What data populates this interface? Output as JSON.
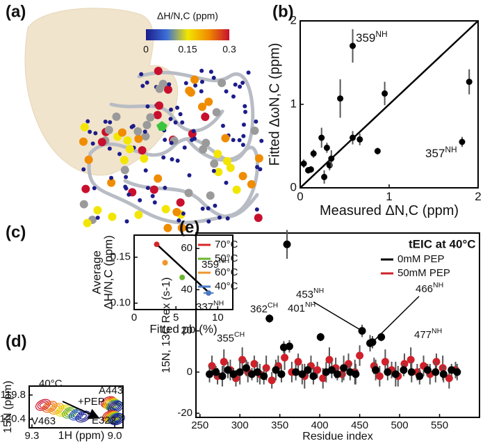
{
  "chart_data": [
    {
      "type": "colorbar",
      "panel_label": "(a)",
      "label": "ΔH/N,C (ppm)",
      "lim": [
        0,
        0.3
      ],
      "ticks": [
        0,
        0.15,
        0.3
      ],
      "colors": [
        "#1c1c8a",
        "#3c6fd8",
        "#f2e600",
        "#f08c00",
        "#c8102e"
      ]
    },
    {
      "type": "scatter",
      "panel_label": "(b)",
      "xlabel": "Measured ΔN,C (ppm)",
      "ylabel": [
        "Fitted ΔωN,C (ppm)"
      ],
      "xlim": [
        0,
        2
      ],
      "ylim": [
        0,
        2
      ],
      "xticks": [
        0,
        1,
        2
      ],
      "yticks": [
        0,
        1,
        2
      ],
      "diagonal": true,
      "series": [
        {
          "color": "#000000",
          "x": [
            0.04,
            0.09,
            0.12,
            0.15,
            0.24,
            0.27,
            0.3,
            0.33,
            0.35,
            0.45,
            0.59,
            0.59,
            0.67,
            0.87,
            0.95,
            1.82,
            1.9
          ],
          "values": [
            0.29,
            0.21,
            0.22,
            0.41,
            0.6,
            0.13,
            0.48,
            0.27,
            0.35,
            1.07,
            0.6,
            1.7,
            0.58,
            0.44,
            1.13,
            0.55,
            1.27
          ],
          "errors": [
            0.05,
            0.04,
            0.04,
            0.05,
            0.12,
            0.08,
            0.06,
            0.06,
            0.1,
            0.23,
            0.08,
            0.2,
            0.07,
            0.04,
            0.14,
            0.06,
            0.15
          ]
        }
      ],
      "annotations": [
        {
          "text": "359",
          "sup": "NH"
        },
        {
          "text": "357",
          "sup": "NH"
        }
      ]
    },
    {
      "type": "scatter",
      "panel_label": "(c)",
      "xlabel": "Fitted pb (%)",
      "ylabel": [
        "Average",
        "ΔH/N,C (ppm)"
      ],
      "xlim": [
        0,
        11.8
      ],
      "ylim": [
        0.093,
        0.174
      ],
      "xticks": [
        0,
        5,
        10
      ],
      "yticks": [
        {
          "value": 0.1,
          "label": "0.10"
        },
        {
          "value": 0.15,
          "label": "0.15"
        }
      ],
      "fit": {
        "x": [
          2.7,
          9
        ],
        "values": [
          0.164,
          0.111
        ]
      },
      "series": [
        {
          "name": "70°C",
          "color": "#d62728",
          "x": [
            2.7
          ],
          "values": [
            0.164
          ]
        },
        {
          "name": "50°C",
          "color": "#6ab630",
          "x": [
            5.75
          ],
          "values": [
            0.128
          ]
        },
        {
          "name": "60°C",
          "color": "#f0952a",
          "x": [
            3.7
          ],
          "values": [
            0.144
          ]
        },
        {
          "name": "40°C",
          "color": "#4a78c2",
          "x": [
            8.9
          ],
          "values": [
            0.111
          ],
          "xerrors": [
            0.6
          ]
        }
      ]
    },
    {
      "type": "spectrum",
      "panel_label": "(d)",
      "xlabel": "1H (ppm)",
      "ylabel": [
        "15N (ppm)"
      ],
      "xlim": [
        9.31,
        8.97
      ],
      "ylim": [
        120.61,
        119.58
      ],
      "xticks": [
        {
          "value": 9.3,
          "label": "9.3"
        },
        {
          "value": 9,
          "label": "9.0"
        }
      ],
      "yticks": [
        {
          "value": 119.8,
          "label": "119.8"
        },
        {
          "value": 120.4,
          "label": "120.4"
        }
      ],
      "annotations": [
        "40°C",
        "+PEP",
        "A443",
        "E322",
        "V463"
      ]
    },
    {
      "type": "scatter",
      "panel_label": "(e)",
      "xlabel": "Residue index",
      "ylabel": [
        "15N, 13C Rex (s-1)"
      ],
      "xlim": [
        245,
        600
      ],
      "ylim": [
        -22,
        67.5
      ],
      "xticks": [
        250,
        300,
        350,
        400,
        450,
        500,
        550
      ],
      "yticks": [
        -20,
        0,
        20,
        40,
        60
      ],
      "legend_title": "tEIC at 40°C",
      "series": [
        {
          "name": "0mM PEP",
          "color": "#000000",
          "x": [
            262,
            270,
            278,
            285,
            292,
            300,
            308,
            315,
            322,
            330,
            337,
            345,
            352,
            355,
            359,
            362,
            370,
            378,
            385,
            392,
            401,
            408,
            415,
            422,
            430,
            438,
            445,
            453,
            463,
            466,
            470,
            477,
            485,
            495,
            505,
            515,
            525,
            535,
            545,
            555,
            565,
            572
          ],
          "values": [
            -1,
            0,
            -2,
            1,
            -1,
            0,
            2,
            -1,
            0,
            -2,
            26,
            1,
            -1,
            12,
            62,
            12.5,
            0,
            -1,
            1,
            -2,
            17,
            0,
            1,
            -1,
            2,
            0,
            -1,
            20,
            14,
            14.5,
            1,
            17,
            0,
            -1,
            1,
            0,
            -2,
            1,
            0,
            -1,
            1,
            0
          ],
          "errors": [
            4,
            3,
            5,
            4,
            3,
            6,
            4,
            3,
            5,
            4,
            2,
            5,
            4,
            3,
            7,
            3,
            4,
            5,
            3,
            4,
            2,
            5,
            4,
            3,
            6,
            4,
            5,
            3,
            4,
            3,
            5,
            2,
            4,
            6,
            3,
            5,
            4,
            3,
            5,
            4,
            3,
            4
          ]
        },
        {
          "name": "50mM PEP",
          "color": "#d0202a",
          "x": [
            265,
            272,
            280,
            288,
            295,
            303,
            310,
            318,
            325,
            333,
            340,
            348,
            356,
            365,
            373,
            381,
            389,
            397,
            404,
            412,
            420,
            428,
            436,
            444,
            450,
            468,
            475,
            482,
            490,
            498,
            506,
            514,
            522,
            530,
            538,
            546,
            554,
            562,
            570
          ],
          "values": [
            3,
            -2,
            5,
            1,
            -3,
            6,
            0,
            4,
            -1,
            2,
            -4,
            3,
            7,
            0,
            5,
            -2,
            3,
            1,
            -3,
            6,
            2,
            -1,
            4,
            0,
            8,
            3,
            -2,
            5,
            1,
            -2,
            4,
            6,
            0,
            3,
            -1,
            5,
            2,
            -3,
            1
          ],
          "errors": [
            5,
            4,
            6,
            5,
            4,
            6,
            5,
            4,
            5,
            6,
            4,
            5,
            6,
            5,
            4,
            6,
            5,
            4,
            5,
            6,
            5,
            4,
            5,
            6,
            5,
            4,
            5,
            6,
            4,
            5,
            5,
            6,
            4,
            5,
            5,
            4,
            6,
            5,
            4
          ]
        }
      ],
      "annotations": [
        {
          "text": "359",
          "sup": "NH"
        },
        {
          "text": "337",
          "sup": "NH"
        },
        {
          "text": "355",
          "sup": "CH"
        },
        {
          "text": "362",
          "sup": "CH"
        },
        {
          "text": "401",
          "sup": "NH"
        },
        {
          "text": "453",
          "sup": "NH"
        },
        {
          "text": "466",
          "sup": "NH"
        },
        {
          "text": "477",
          "sup": "NH"
        }
      ]
    }
  ]
}
